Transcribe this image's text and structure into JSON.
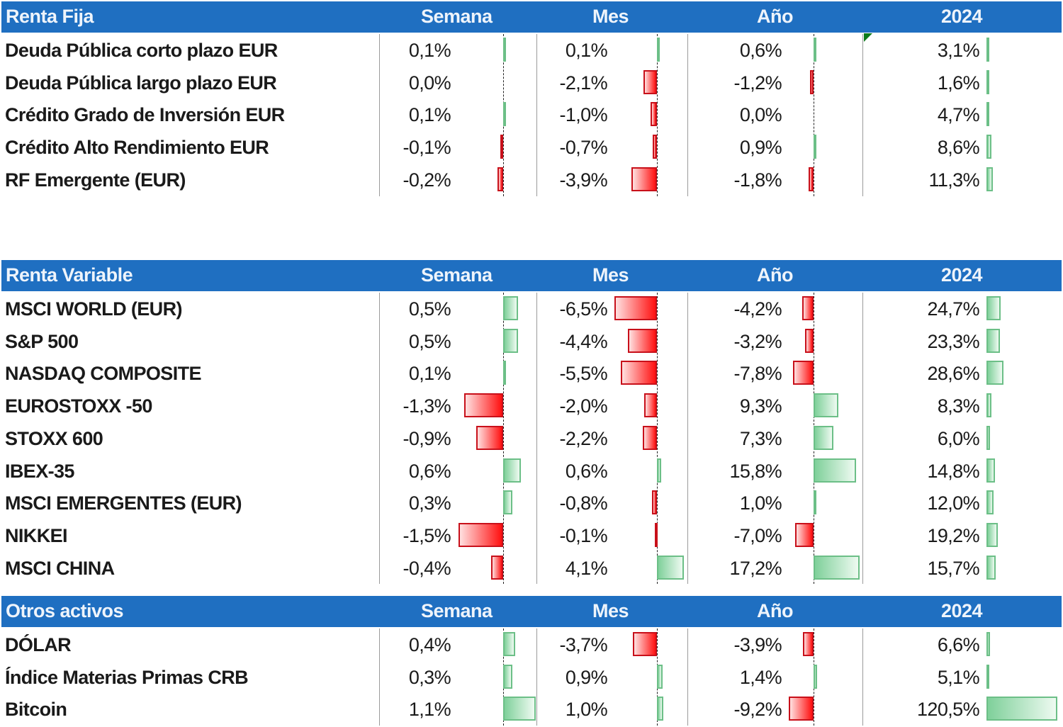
{
  "columns": [
    "Semana",
    "Mes",
    "Año",
    "2024"
  ],
  "colors": {
    "header_bg": "#1f6fc1",
    "header_text": "#ffffff",
    "negative_bar": "#ff1010",
    "positive_bar": "#7fd09a"
  },
  "sections": [
    {
      "title": "Renta Fija",
      "rows": [
        {
          "name": "Deuda Pública corto plazo EUR",
          "semana": "0,1%",
          "mes": "0,1%",
          "ano": "0,6%",
          "y2024": "3,1%"
        },
        {
          "name": "Deuda Pública largo plazo EUR",
          "semana": "0,0%",
          "mes": "-2,1%",
          "ano": "-1,2%",
          "y2024": "1,6%"
        },
        {
          "name": "Crédito Grado de Inversión EUR",
          "semana": "0,1%",
          "mes": "-1,0%",
          "ano": "0,0%",
          "y2024": "4,7%"
        },
        {
          "name": "Crédito Alto Rendimiento EUR",
          "semana": "-0,1%",
          "mes": "-0,7%",
          "ano": "0,9%",
          "y2024": "8,6%"
        },
        {
          "name": "RF Emergente (EUR)",
          "semana": "-0,2%",
          "mes": "-3,9%",
          "ano": "-1,8%",
          "y2024": "11,3%"
        }
      ]
    },
    {
      "title": "Renta Variable",
      "rows": [
        {
          "name": "MSCI WORLD (EUR)",
          "semana": "0,5%",
          "mes": "-6,5%",
          "ano": "-4,2%",
          "y2024": "24,7%"
        },
        {
          "name": "S&P 500",
          "semana": "0,5%",
          "mes": "-4,4%",
          "ano": "-3,2%",
          "y2024": "23,3%"
        },
        {
          "name": "NASDAQ COMPOSITE",
          "semana": "0,1%",
          "mes": "-5,5%",
          "ano": "-7,8%",
          "y2024": "28,6%"
        },
        {
          "name": "EUROSTOXX -50",
          "semana": "-1,3%",
          "mes": "-2,0%",
          "ano": "9,3%",
          "y2024": "8,3%"
        },
        {
          "name": "STOXX 600",
          "semana": "-0,9%",
          "mes": "-2,2%",
          "ano": "7,3%",
          "y2024": "6,0%"
        },
        {
          "name": "IBEX-35",
          "semana": "0,6%",
          "mes": "0,6%",
          "ano": "15,8%",
          "y2024": "14,8%"
        },
        {
          "name": "MSCI EMERGENTES (EUR)",
          "semana": "0,3%",
          "mes": "-0,8%",
          "ano": "1,0%",
          "y2024": "12,0%"
        },
        {
          "name": "NIKKEI",
          "semana": "-1,5%",
          "mes": "-0,1%",
          "ano": "-7,0%",
          "y2024": "19,2%"
        },
        {
          "name": "MSCI CHINA",
          "semana": "-0,4%",
          "mes": "4,1%",
          "ano": "17,2%",
          "y2024": "15,7%"
        }
      ]
    },
    {
      "title": "Otros activos",
      "rows": [
        {
          "name": "DÓLAR",
          "semana": "0,4%",
          "mes": "-3,7%",
          "ano": "-3,9%",
          "y2024": "6,6%"
        },
        {
          "name": "Índice Materias Primas CRB",
          "semana": "0,3%",
          "mes": "0,9%",
          "ano": "1,4%",
          "y2024": "5,1%"
        },
        {
          "name": "Bitcoin",
          "semana": "1,1%",
          "mes": "1,0%",
          "ano": "-9,2%",
          "y2024": "120,5%"
        }
      ]
    }
  ],
  "chart_data": {
    "type": "table",
    "title": "",
    "columns": [
      "Semana",
      "Mes",
      "Año",
      "2024"
    ],
    "unit": "%",
    "series": [
      {
        "group": "Renta Fija",
        "name": "Deuda Pública corto plazo EUR",
        "values": [
          0.1,
          0.1,
          0.6,
          3.1
        ]
      },
      {
        "group": "Renta Fija",
        "name": "Deuda Pública largo plazo EUR",
        "values": [
          0.0,
          -2.1,
          -1.2,
          1.6
        ]
      },
      {
        "group": "Renta Fija",
        "name": "Crédito Grado de Inversión EUR",
        "values": [
          0.1,
          -1.0,
          0.0,
          4.7
        ]
      },
      {
        "group": "Renta Fija",
        "name": "Crédito Alto Rendimiento EUR",
        "values": [
          -0.1,
          -0.7,
          0.9,
          8.6
        ]
      },
      {
        "group": "Renta Fija",
        "name": "RF Emergente (EUR)",
        "values": [
          -0.2,
          -3.9,
          -1.8,
          11.3
        ]
      },
      {
        "group": "Renta Variable",
        "name": "MSCI WORLD (EUR)",
        "values": [
          0.5,
          -6.5,
          -4.2,
          24.7
        ]
      },
      {
        "group": "Renta Variable",
        "name": "S&P 500",
        "values": [
          0.5,
          -4.4,
          -3.2,
          23.3
        ]
      },
      {
        "group": "Renta Variable",
        "name": "NASDAQ COMPOSITE",
        "values": [
          0.1,
          -5.5,
          -7.8,
          28.6
        ]
      },
      {
        "group": "Renta Variable",
        "name": "EUROSTOXX -50",
        "values": [
          -1.3,
          -2.0,
          9.3,
          8.3
        ]
      },
      {
        "group": "Renta Variable",
        "name": "STOXX 600",
        "values": [
          -0.9,
          -2.2,
          7.3,
          6.0
        ]
      },
      {
        "group": "Renta Variable",
        "name": "IBEX-35",
        "values": [
          0.6,
          0.6,
          15.8,
          14.8
        ]
      },
      {
        "group": "Renta Variable",
        "name": "MSCI EMERGENTES (EUR)",
        "values": [
          0.3,
          -0.8,
          1.0,
          12.0
        ]
      },
      {
        "group": "Renta Variable",
        "name": "NIKKEI",
        "values": [
          -1.5,
          -0.1,
          -7.0,
          19.2
        ]
      },
      {
        "group": "Renta Variable",
        "name": "MSCI CHINA",
        "values": [
          -0.4,
          4.1,
          17.2,
          15.7
        ]
      },
      {
        "group": "Otros activos",
        "name": "DÓLAR",
        "values": [
          0.4,
          -3.7,
          -3.9,
          6.6
        ]
      },
      {
        "group": "Otros activos",
        "name": "Índice Materias Primas CRB",
        "values": [
          0.3,
          0.9,
          1.4,
          5.1
        ]
      },
      {
        "group": "Otros activos",
        "name": "Bitcoin",
        "values": [
          1.1,
          1.0,
          -9.2,
          120.5
        ]
      }
    ],
    "bar_scale_max_abs": {
      "Semana": 1.5,
      "Mes": 6.5,
      "Año": 17.2,
      "2024": 120.5
    }
  }
}
